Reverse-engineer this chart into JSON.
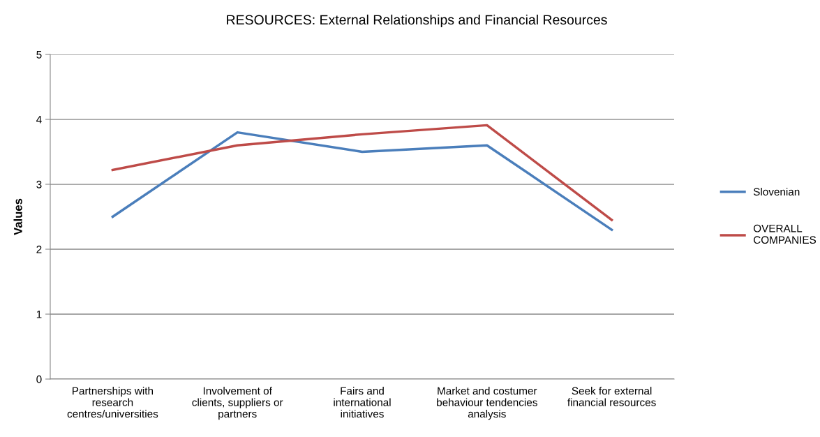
{
  "chart_data": {
    "type": "line",
    "title": "RESOURCES: External Relationships and Financial Resources",
    "ylabel": "Values",
    "categories": [
      "Partnerships with\nresearch\ncentres/universities",
      "Involvement of\nclients, suppliers or\npartners",
      "Fairs and\ninternational\ninitiatives",
      "Market and costumer\nbehaviour tendencies\nanalysis",
      "Seek for external\nfinancial resources"
    ],
    "series": [
      {
        "name": "Slovenian",
        "color": "#4a7ebb",
        "values": [
          2.5,
          3.8,
          3.5,
          3.6,
          2.3
        ]
      },
      {
        "name": "OVERALL\nCOMPANIES",
        "color": "#be4b48",
        "values": [
          3.22,
          3.6,
          3.77,
          3.91,
          2.45
        ]
      }
    ],
    "ylim": [
      0,
      5
    ],
    "yticks": [
      0,
      1,
      2,
      3,
      4,
      5
    ],
    "grid": "y",
    "legend": "right",
    "marker": "none",
    "line_style": "solid"
  }
}
